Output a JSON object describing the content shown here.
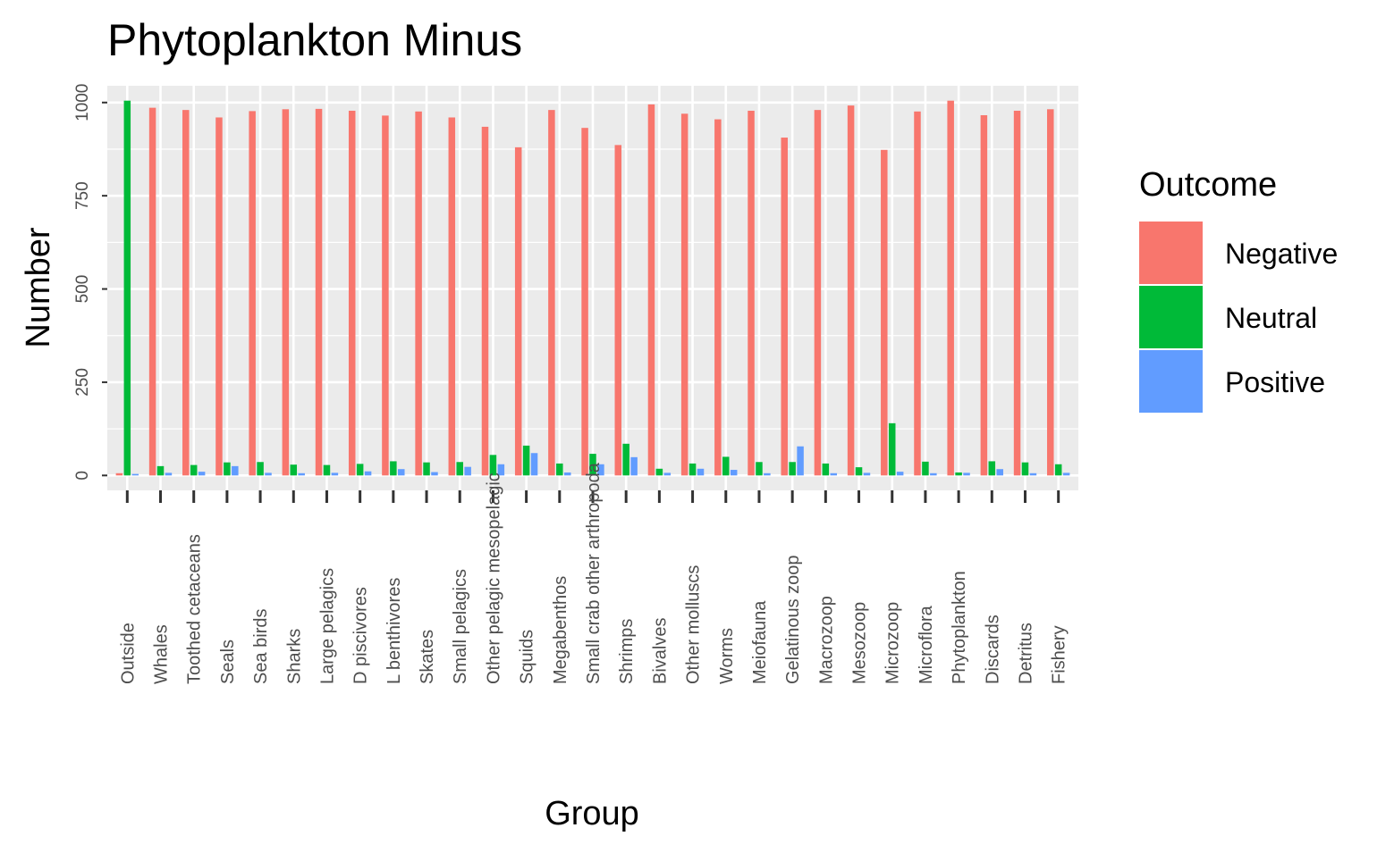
{
  "chart_data": {
    "type": "bar",
    "title": "Phytoplankton Minus",
    "xlabel": "Group",
    "ylabel": "Number",
    "ylim": [
      -40,
      1045
    ],
    "yticks": [
      0,
      250,
      500,
      750,
      1000
    ],
    "ytick_labels": [
      "0",
      "250",
      "500",
      "750",
      "1000"
    ],
    "grid": true,
    "legend_position": "right",
    "legend_title": "Outcome",
    "categories": [
      "Outside",
      "Whales",
      "Toothed cetaceans",
      "Seals",
      "Sea birds",
      "Sharks",
      "Large pelagics",
      "D piscivores",
      "L benthivores",
      "Skates",
      "Small pelagics",
      "Other pelagic mesopelagic",
      "Squids",
      "Megabenthos",
      "Small crab other arthropoda",
      "Shrimps",
      "Bivalves",
      "Other molluscs",
      "Worms",
      "Meiofauna",
      "Gelatinous zoop",
      "Macrozoop",
      "Mesozoop",
      "Microzoop",
      "Microflora",
      "Phytoplankton",
      "Discards",
      "Detritus",
      "Fishery"
    ],
    "series": [
      {
        "name": "Negative",
        "color": "#F8766D",
        "values": [
          6,
          986,
          980,
          960,
          977,
          982,
          983,
          978,
          965,
          976,
          960,
          935,
          880,
          980,
          932,
          886,
          995,
          970,
          955,
          978,
          906,
          980,
          992,
          873,
          976,
          1005,
          966,
          978,
          982
        ]
      },
      {
        "name": "Neutral",
        "color": "#00BA38",
        "values": [
          1005,
          25,
          28,
          35,
          36,
          29,
          28,
          31,
          38,
          35,
          36,
          55,
          80,
          32,
          58,
          85,
          18,
          32,
          50,
          36,
          36,
          32,
          22,
          140,
          37,
          8,
          38,
          35,
          30
        ]
      },
      {
        "name": "Positive",
        "color": "#619CFF",
        "values": [
          4,
          7,
          10,
          25,
          7,
          6,
          7,
          11,
          17,
          9,
          23,
          30,
          60,
          8,
          30,
          49,
          7,
          18,
          15,
          6,
          78,
          6,
          7,
          10,
          6,
          7,
          17,
          6,
          7
        ]
      }
    ]
  }
}
